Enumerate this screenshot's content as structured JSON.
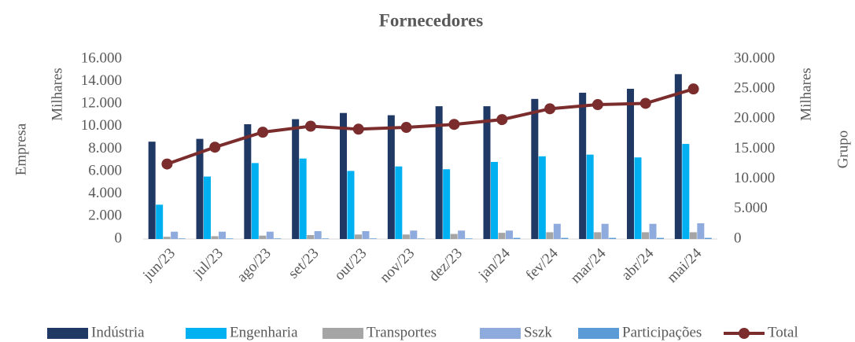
{
  "chart_data": {
    "type": "bar-line",
    "title": "Fornecedores",
    "y_label": "Empresa",
    "y_label_unit": "Milhares",
    "y2_label": "Grupo",
    "y2_label_unit": "Milhares",
    "categories": [
      "jun/23",
      "jul/23",
      "ago/23",
      "set/23",
      "out/23",
      "nov/23",
      "dez/23",
      "jan/24",
      "fev/24",
      "mar/24",
      "abr/24",
      "mai/24"
    ],
    "series": [
      {
        "name": "Indústria",
        "color": "#1f3864",
        "kind": "bar",
        "values": [
          8650,
          8900,
          10200,
          10650,
          11200,
          11000,
          11800,
          11800,
          12450,
          13000,
          13350,
          14650
        ]
      },
      {
        "name": "Engenharia",
        "color": "#00b0f0",
        "kind": "bar",
        "values": [
          3050,
          5550,
          6750,
          7150,
          6050,
          6450,
          6200,
          6850,
          7350,
          7500,
          7250,
          8450
        ]
      },
      {
        "name": "Transportes",
        "color": "#a5a5a5",
        "kind": "bar",
        "values": [
          200,
          250,
          300,
          350,
          400,
          400,
          450,
          550,
          600,
          600,
          600,
          600
        ]
      },
      {
        "name": "Sszk",
        "color": "#8faadc",
        "kind": "bar",
        "values": [
          650,
          650,
          650,
          700,
          700,
          750,
          750,
          750,
          1350,
          1350,
          1350,
          1400
        ]
      },
      {
        "name": "Participações",
        "color": "#5b9bd5",
        "kind": "bar",
        "values": [
          50,
          50,
          50,
          50,
          50,
          50,
          50,
          100,
          100,
          100,
          100,
          100
        ]
      },
      {
        "name": "Total",
        "color": "#7b2c2c",
        "kind": "line",
        "axis": "y2",
        "values": [
          12500,
          15300,
          17800,
          18800,
          18300,
          18600,
          19100,
          19900,
          21700,
          22400,
          22600,
          25000
        ]
      }
    ],
    "ylim": [
      0,
      16000
    ],
    "yticks": [
      {
        "value": 0,
        "label": "0"
      },
      {
        "value": 2000,
        "label": "2.000"
      },
      {
        "value": 4000,
        "label": "4.000"
      },
      {
        "value": 6000,
        "label": "6.000"
      },
      {
        "value": 8000,
        "label": "8.000"
      },
      {
        "value": 10000,
        "label": "10.000"
      },
      {
        "value": 12000,
        "label": "12.000"
      },
      {
        "value": 14000,
        "label": "14.000"
      },
      {
        "value": 16000,
        "label": "16.000"
      }
    ],
    "y2lim": [
      0,
      30000
    ],
    "y2ticks": [
      {
        "value": 0,
        "label": "0"
      },
      {
        "value": 5000,
        "label": "5.000"
      },
      {
        "value": 10000,
        "label": "10.000"
      },
      {
        "value": 15000,
        "label": "15.000"
      },
      {
        "value": 20000,
        "label": "20.000"
      },
      {
        "value": 25000,
        "label": "25.000"
      },
      {
        "value": 30000,
        "label": "30.000"
      }
    ],
    "grid": false,
    "legend": "bottom"
  }
}
